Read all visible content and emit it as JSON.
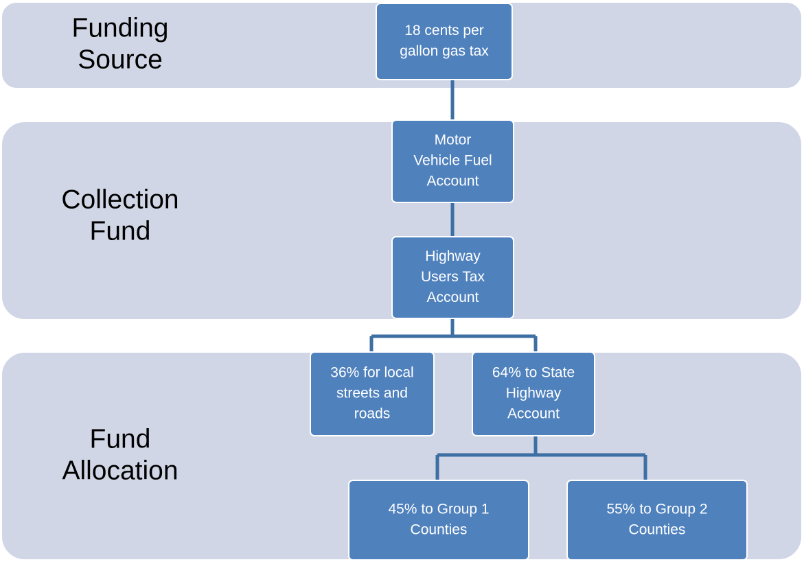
{
  "bands": [
    {
      "lines": [
        "Funding",
        "Source"
      ]
    },
    {
      "lines": [
        "Collection",
        "Fund"
      ]
    },
    {
      "lines": [
        "Fund",
        "Allocation"
      ]
    }
  ],
  "nodes": [
    {
      "lines": [
        "18 cents per",
        "gallon gas tax"
      ]
    },
    {
      "lines": [
        "Motor",
        "Vehicle Fuel",
        "Account"
      ]
    },
    {
      "lines": [
        "Highway",
        "Users Tax",
        "Account"
      ]
    },
    {
      "lines": [
        "36% for local",
        "streets and",
        "roads"
      ]
    },
    {
      "lines": [
        "64% to State",
        "Highway",
        "Account"
      ]
    },
    {
      "lines": [
        "45% to Group  1",
        "Counties"
      ]
    },
    {
      "lines": [
        "55% to Group 2",
        "Counties"
      ]
    }
  ]
}
